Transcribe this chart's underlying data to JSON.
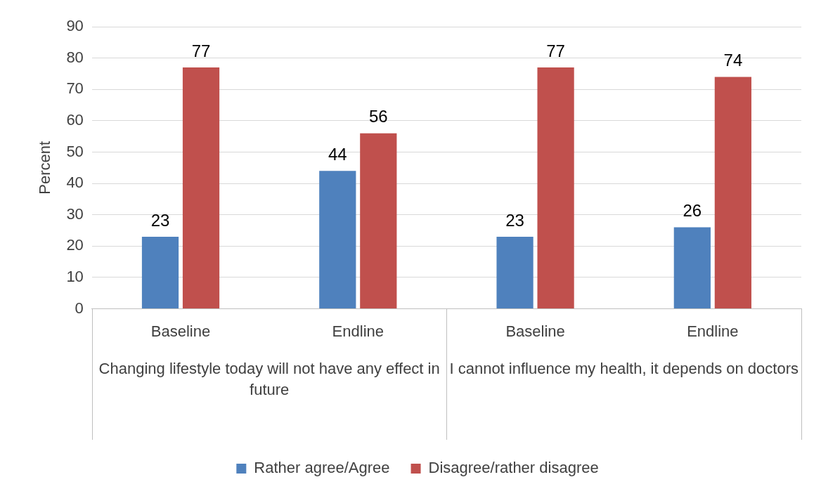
{
  "chart_data": {
    "type": "bar",
    "ylabel": "Percent",
    "categories": [
      "Baseline",
      "Endline",
      "Baseline",
      "Endline"
    ],
    "series": [
      {
        "name": "Rather agree/Agree",
        "color": "#4f81bd",
        "values": [
          23,
          44,
          23,
          26
        ]
      },
      {
        "name": "Disagree/rather disagree",
        "color": "#c0504d",
        "values": [
          77,
          56,
          77,
          74
        ]
      }
    ],
    "ylim": [
      0,
      90
    ],
    "yticks": [
      0,
      10,
      20,
      30,
      40,
      50,
      60,
      70,
      80,
      90
    ],
    "grid": "y",
    "legend": "bottom",
    "data_labels": true,
    "annotations": [
      "Changing lifestyle today will not have any effect in future",
      "I cannot influence my health, it depends on doctors"
    ]
  }
}
